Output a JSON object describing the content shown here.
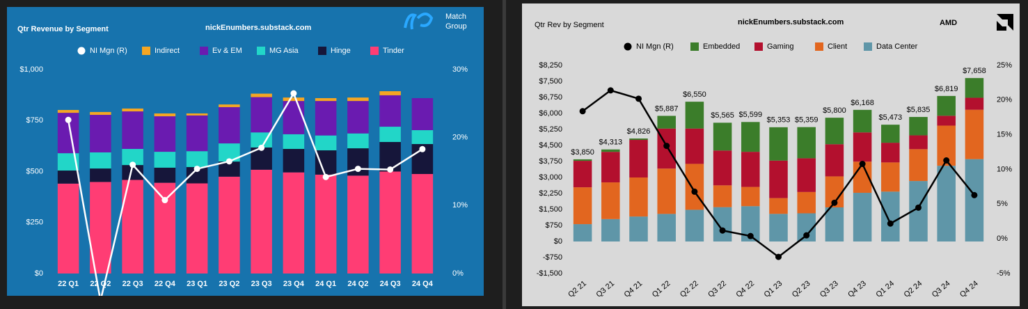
{
  "chart_data": [
    {
      "type": "bar",
      "stacked": true,
      "title": "Qtr Revenue by Segment",
      "subtitle": "nickEnumbers.substack.com",
      "logo": [
        "Match",
        "Group"
      ],
      "categories": [
        "22 Q1",
        "22 Q2",
        "22 Q3",
        "22 Q4",
        "23 Q1",
        "23 Q2",
        "23 Q3",
        "23 Q4",
        "24 Q1",
        "24 Q2",
        "24 Q3",
        "24 Q4"
      ],
      "series": [
        {
          "name": "NI Mgn (R)",
          "type": "line",
          "axis": "y2",
          "color": "#ffffff",
          "values": [
            22.6,
            -4,
            16.0,
            10.8,
            15.4,
            16.5,
            18.5,
            26.5,
            14.2,
            15.4,
            15.3,
            18.3
          ]
        },
        {
          "name": "Indirect",
          "color": "#f5a623",
          "values": [
            14,
            14,
            14,
            14,
            10,
            13,
            17,
            17,
            14,
            17,
            20,
            0
          ]
        },
        {
          "name": "Ev & EM",
          "color": "#6a1bb0",
          "values": [
            198,
            184,
            184,
            174,
            175,
            178,
            173,
            163,
            169,
            159,
            154,
            157
          ]
        },
        {
          "name": "MG Asia",
          "color": "#22d6c8",
          "values": [
            85,
            79,
            79,
            78,
            78,
            89,
            74,
            72,
            73,
            73,
            75,
            68
          ]
        },
        {
          "name": "Hinge",
          "color": "#16163a",
          "values": [
            64,
            66,
            73,
            74,
            80,
            74,
            109,
            115,
            119,
            134,
            145,
            147
          ]
        },
        {
          "name": "Tinder",
          "color": "#ff3d74",
          "values": [
            441,
            449,
            459,
            445,
            442,
            475,
            509,
            496,
            485,
            480,
            500,
            488
          ]
        }
      ],
      "ylim": [
        0,
        1000
      ],
      "yticks": [
        {
          "value": 0,
          "label": "$0"
        },
        {
          "value": 250,
          "label": "$250"
        },
        {
          "value": 500,
          "label": "$500"
        },
        {
          "value": 750,
          "label": "$750"
        },
        {
          "value": 1000,
          "label": "$1,000"
        }
      ],
      "y2lim": [
        0,
        30
      ],
      "y2ticks": [
        {
          "value": 0,
          "label": "0%"
        },
        {
          "value": 10,
          "label": "10%"
        },
        {
          "value": 20,
          "label": "20%"
        },
        {
          "value": 30,
          "label": "30%"
        }
      ]
    },
    {
      "type": "bar",
      "stacked": true,
      "title": "Qtr Rev by Segment",
      "subtitle": "nickEnumbers.substack.com",
      "logo": [
        "AMD"
      ],
      "categories": [
        "Q2 21",
        "Q3 21",
        "Q4 21",
        "Q1 22",
        "Q2 22",
        "Q3 22",
        "Q4 22",
        "Q1 23",
        "Q2 23",
        "Q3 23",
        "Q4 23",
        "Q1 24",
        "Q2 24",
        "Q3 24",
        "Q4 24"
      ],
      "series": [
        {
          "name": "NI Mgn (R)",
          "type": "line",
          "axis": "y2",
          "color": "#000000",
          "values": [
            18.4,
            21.4,
            20.2,
            13.4,
            6.8,
            1.2,
            0.4,
            -2.6,
            0.5,
            5.2,
            10.8,
            2.2,
            4.5,
            11.3,
            6.3
          ]
        },
        {
          "name": "Embedded",
          "color": "#3b7d2a",
          "values": [
            70,
            113,
            66,
            595,
            1257,
            1303,
            1397,
            1562,
            1459,
            1243,
            1057,
            846,
            861,
            927,
            923
          ]
        },
        {
          "name": "Gaming",
          "color": "#b3102e",
          "values": [
            1240,
            1430,
            1760,
            1875,
            1655,
            1631,
            1644,
            1757,
            1581,
            1506,
            1368,
            922,
            648,
            462,
            563
          ]
        },
        {
          "name": "Client",
          "color": "#e2661f",
          "values": [
            1727,
            1720,
            1830,
            2124,
            2152,
            1022,
            903,
            739,
            998,
            1453,
            1461,
            1368,
            1492,
            1881,
            2313
          ]
        },
        {
          "name": "Data Center",
          "color": "#5f96a8",
          "values": [
            813,
            1050,
            1170,
            1293,
            1486,
            1609,
            1655,
            1295,
            1321,
            1598,
            2282,
            2337,
            2834,
            3549,
            3859
          ]
        }
      ],
      "totals": [
        3850,
        4313,
        4826,
        5887,
        6550,
        5565,
        5599,
        5353,
        5359,
        5800,
        6168,
        5473,
        5835,
        6819,
        7658
      ],
      "total_labels": [
        "$3,850",
        "$4,313",
        "$4,826",
        "$5,887",
        "$6,550",
        "$5,565",
        "$5,599",
        "$5,353",
        "$5,359",
        "$5,800",
        "$6,168",
        "$5,473",
        "$5,835",
        "$6,819",
        "$7,658"
      ],
      "ylim": [
        -1500,
        8250
      ],
      "yticks": [
        {
          "value": -1500,
          "label": "-$1,500"
        },
        {
          "value": -750,
          "label": "-$750"
        },
        {
          "value": 0,
          "label": "$0"
        },
        {
          "value": 750,
          "label": "$750"
        },
        {
          "value": 1500,
          "label": "$1,500"
        },
        {
          "value": 2250,
          "label": "$2,250"
        },
        {
          "value": 3000,
          "label": "$3,000"
        },
        {
          "value": 3750,
          "label": "$3,750"
        },
        {
          "value": 4500,
          "label": "$4,500"
        },
        {
          "value": 5250,
          "label": "$5,250"
        },
        {
          "value": 6000,
          "label": "$6,000"
        },
        {
          "value": 6750,
          "label": "$6,750"
        },
        {
          "value": 7500,
          "label": "$7,500"
        },
        {
          "value": 8250,
          "label": "$8,250"
        }
      ],
      "y2lim": [
        -5,
        25
      ],
      "y2ticks": [
        {
          "value": -5,
          "label": "-5%"
        },
        {
          "value": 0,
          "label": "0%"
        },
        {
          "value": 5,
          "label": "5%"
        },
        {
          "value": 10,
          "label": "10%"
        },
        {
          "value": 15,
          "label": "15%"
        },
        {
          "value": 20,
          "label": "20%"
        },
        {
          "value": 25,
          "label": "25%"
        }
      ]
    }
  ]
}
